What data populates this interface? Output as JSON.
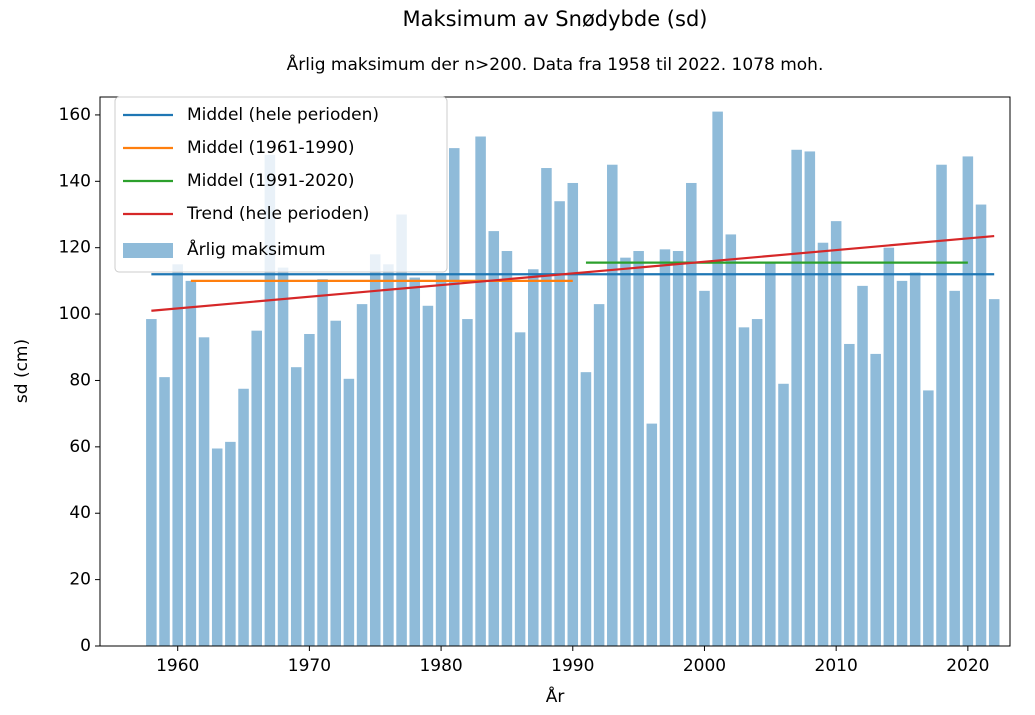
{
  "chart_data": {
    "type": "bar",
    "title": "Maksimum av Snødybde (sd)",
    "subtitle": "Årlig maksimum der n>200. Data fra 1958 til 2022. 1078 moh.",
    "xlabel": "År",
    "ylabel": "sd (cm)",
    "x": [
      1958,
      1959,
      1960,
      1961,
      1962,
      1963,
      1964,
      1965,
      1966,
      1967,
      1968,
      1969,
      1970,
      1971,
      1972,
      1973,
      1974,
      1975,
      1976,
      1977,
      1978,
      1979,
      1980,
      1981,
      1982,
      1983,
      1984,
      1985,
      1986,
      1987,
      1988,
      1989,
      1990,
      1991,
      1992,
      1993,
      1994,
      1995,
      1996,
      1997,
      1998,
      1999,
      2000,
      2001,
      2002,
      2003,
      2004,
      2005,
      2006,
      2007,
      2008,
      2009,
      2010,
      2011,
      2012,
      2013,
      2014,
      2015,
      2016,
      2017,
      2018,
      2019,
      2020,
      2021,
      2022
    ],
    "series": [
      {
        "name": "Middel (hele perioden)",
        "type": "line",
        "color": "#1f77b4",
        "x": [
          1958,
          2022
        ],
        "values": [
          112,
          112
        ]
      },
      {
        "name": "Middel (1961-1990)",
        "type": "line",
        "color": "#ff7f0e",
        "x": [
          1961,
          1990
        ],
        "values": [
          110,
          110
        ]
      },
      {
        "name": "Middel (1991-2020)",
        "type": "line",
        "color": "#2ca02c",
        "x": [
          1991,
          2020
        ],
        "values": [
          115.5,
          115.5
        ]
      },
      {
        "name": "Trend (hele perioden)",
        "type": "line",
        "color": "#d62728",
        "x": [
          1958,
          2022
        ],
        "values": [
          101,
          123.5
        ]
      },
      {
        "name": "Årlig maksimum",
        "type": "bar",
        "color": "#8fbbd9",
        "values": [
          98.5,
          81,
          115,
          110,
          93,
          59.5,
          61.5,
          77.5,
          95,
          148,
          114,
          84,
          94,
          110.5,
          98,
          80.5,
          103,
          118,
          115,
          130,
          111,
          102.5,
          112,
          150,
          98.5,
          153.5,
          125,
          119,
          94.5,
          113.5,
          144,
          134,
          139.5,
          82.5,
          103,
          145,
          117,
          119,
          67,
          119.5,
          119,
          139.5,
          107,
          161,
          124,
          96,
          98.5,
          115.5,
          79,
          149.5,
          149,
          121.5,
          128,
          91,
          108.5,
          88,
          120,
          110,
          112.5,
          77,
          145,
          107,
          147.5,
          133,
          104.5
        ]
      }
    ],
    "xlim": [
      1954.1,
      2023.2
    ],
    "xticks": [
      1960,
      1970,
      1980,
      1990,
      2000,
      2010,
      2020
    ],
    "ylim": [
      0,
      165.4
    ],
    "yticks": [
      0,
      20,
      40,
      60,
      80,
      100,
      120,
      140,
      160
    ],
    "legend": "upper left"
  }
}
